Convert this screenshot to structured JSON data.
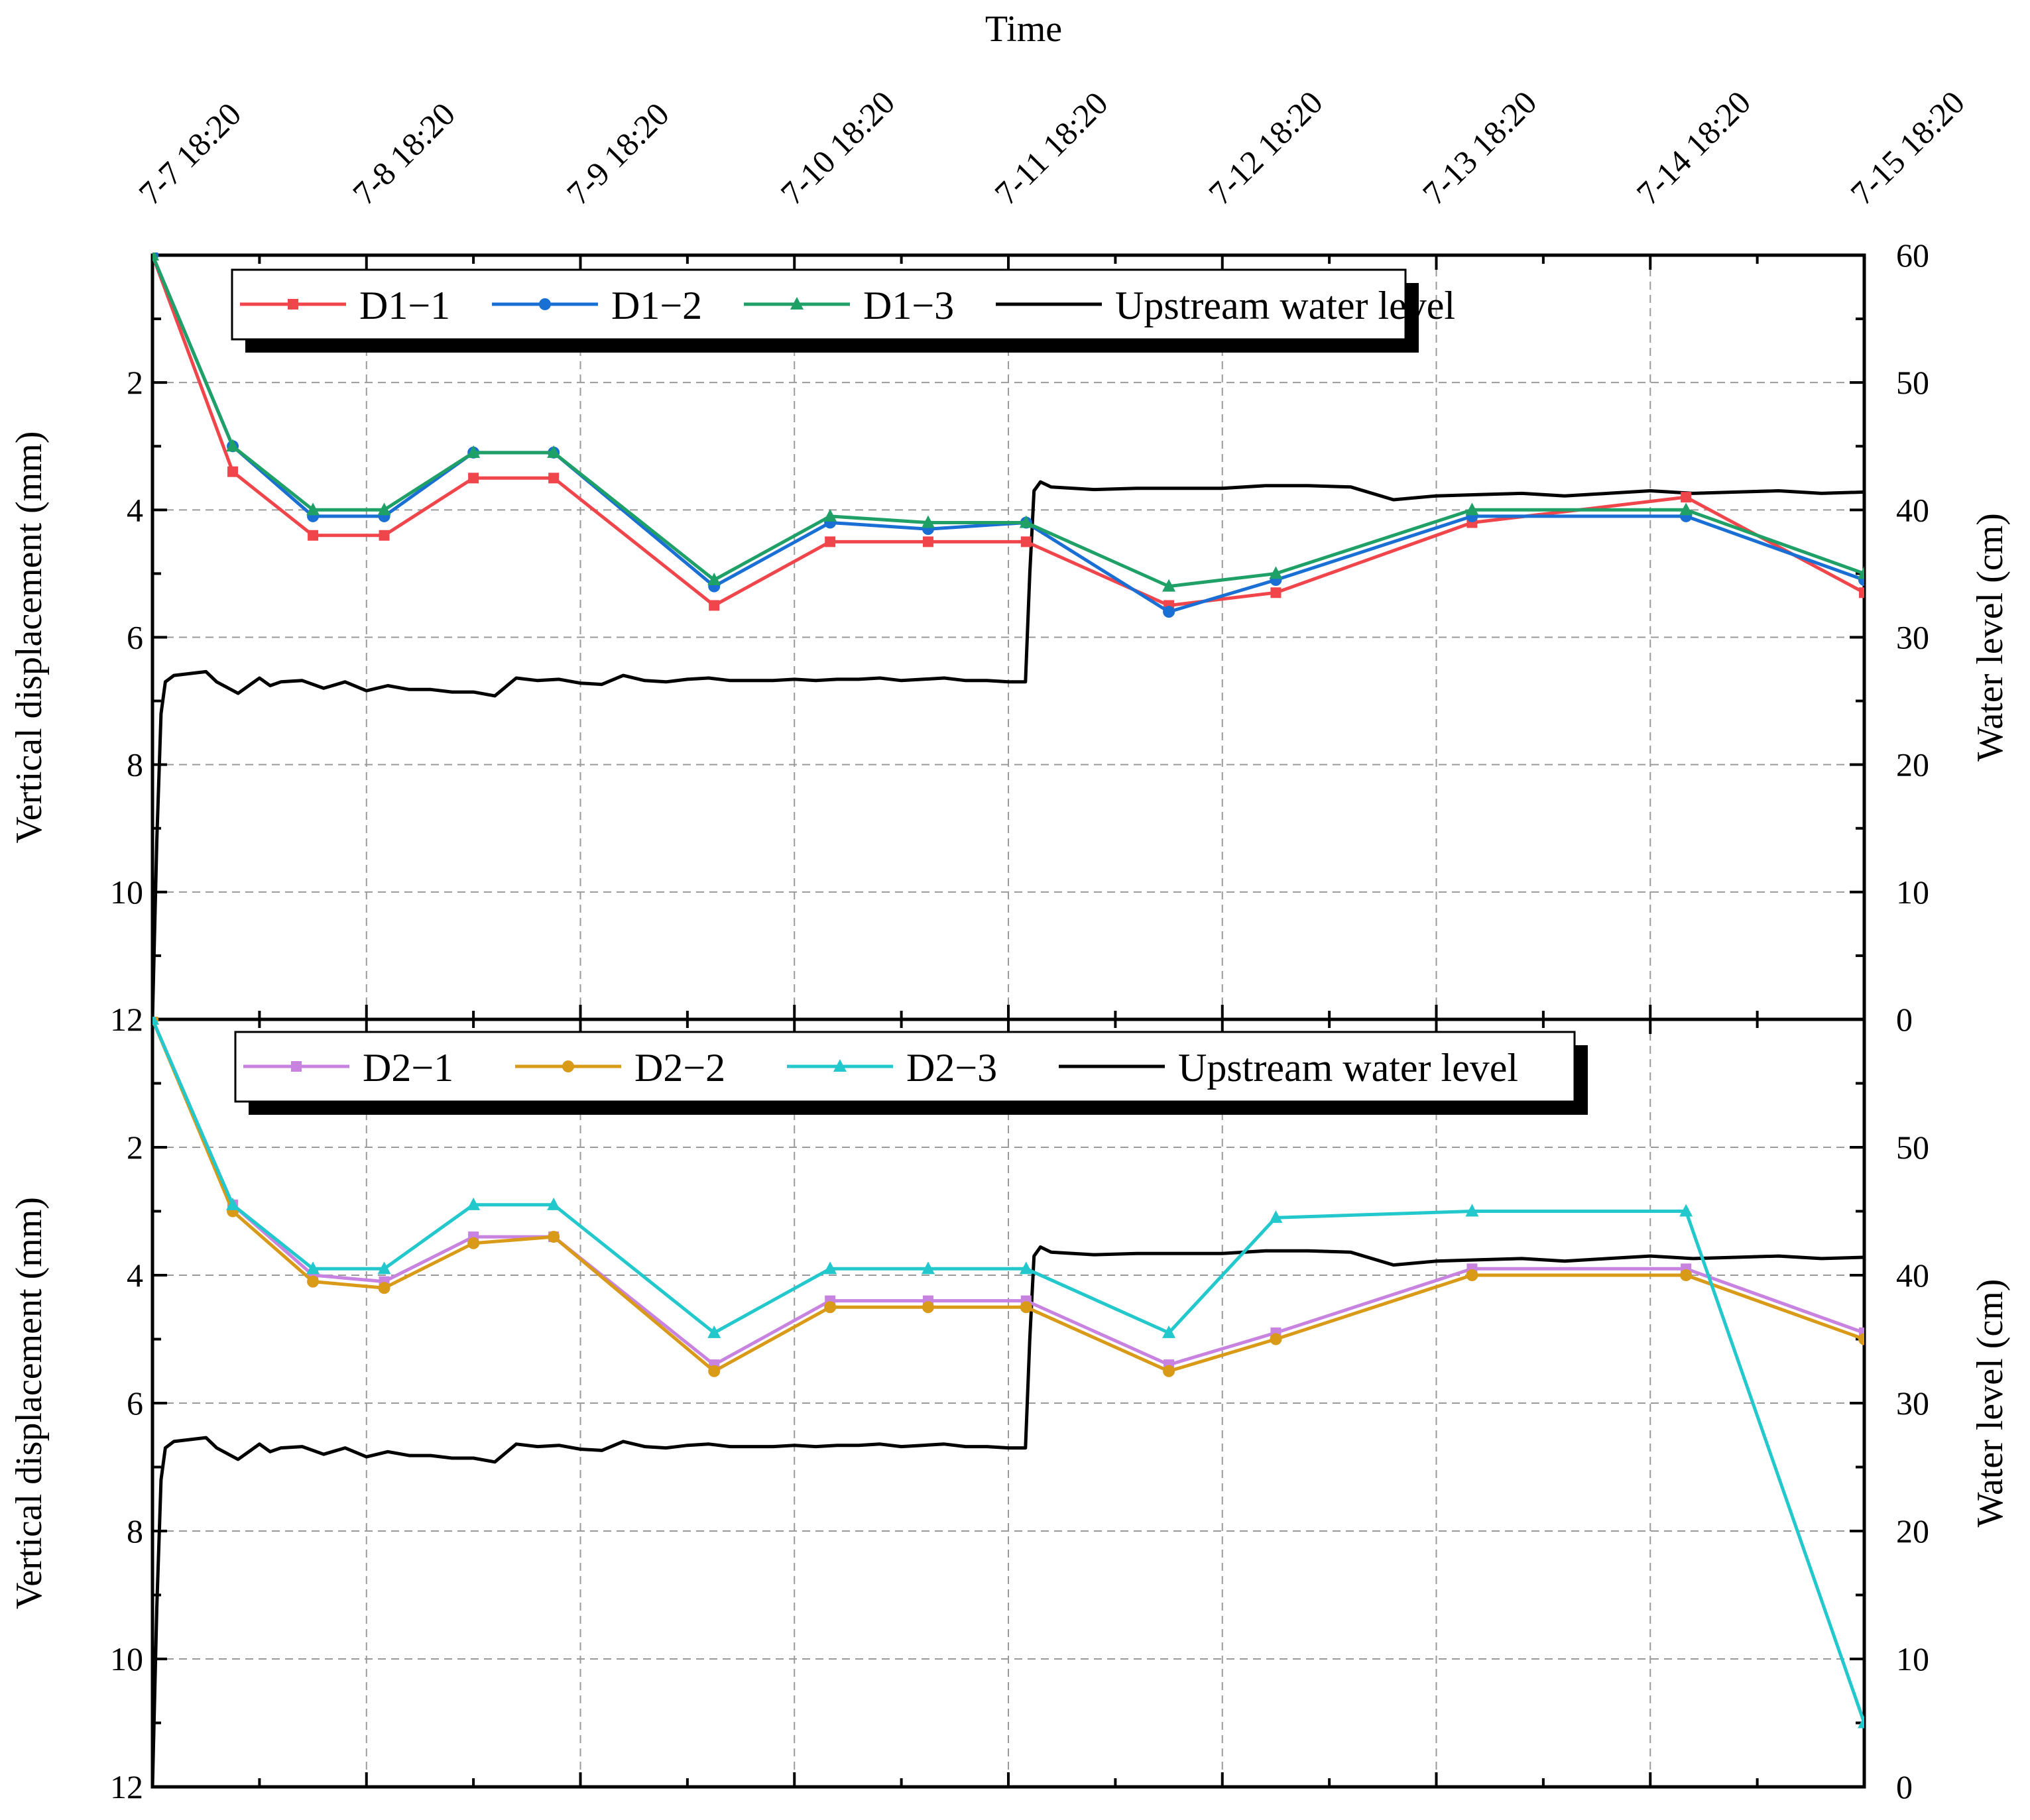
{
  "chart_data": {
    "type": "line",
    "top_axis": {
      "title": "Time",
      "tick_labels": [
        "7-7 18:20",
        "7-8 18:20",
        "7-9 18:20",
        "7-10 18:20",
        "7-11 18:20",
        "7-12 18:20",
        "7-13 18:20",
        "7-14 18:20",
        "7-15 18:20"
      ],
      "range_days": [
        0,
        8
      ]
    },
    "panels": [
      {
        "ylabel": "Vertical displacement (mm)",
        "y2label": "Water level (cm)",
        "ylim": [
          0,
          12
        ],
        "y_inverted": true,
        "y_tick_labels": [
          "2",
          "4",
          "6",
          "8",
          "10",
          "12"
        ],
        "y2lim": [
          0,
          60
        ],
        "y2_tick_labels": [
          "0",
          "10",
          "20",
          "30",
          "40",
          "50",
          "60"
        ],
        "legend": [
          "D1−1",
          "D1−2",
          "D1−3",
          "Upstream water level"
        ],
        "x": [
          0,
          0.375,
          0.75,
          1.083,
          1.5,
          1.875,
          2.625,
          3.167,
          3.625,
          4.083,
          4.75,
          5.25,
          6.167,
          7.167,
          8
        ],
        "series": [
          {
            "name": "D1−1",
            "color": "#f0464b",
            "marker": "square",
            "values": [
              0,
              3.4,
              4.4,
              4.4,
              3.5,
              3.5,
              5.5,
              4.5,
              4.5,
              4.5,
              5.5,
              5.3,
              4.2,
              3.8,
              5.3
            ]
          },
          {
            "name": "D1−2",
            "color": "#1a6fd4",
            "marker": "circle",
            "values": [
              0,
              3.0,
              4.1,
              4.1,
              3.1,
              3.1,
              5.2,
              4.2,
              4.3,
              4.2,
              5.6,
              5.1,
              4.1,
              4.1,
              5.1
            ]
          },
          {
            "name": "D1−3",
            "color": "#1ea067",
            "marker": "triangle",
            "values": [
              0,
              3.0,
              4.0,
              4.0,
              3.1,
              3.1,
              5.1,
              4.1,
              4.2,
              4.2,
              5.2,
              5.0,
              4.0,
              4.0,
              5.0
            ]
          }
        ],
        "water_level": {
          "name": "Upstream water level",
          "color": "#000000",
          "x": [
            0,
            0.02,
            0.04,
            0.06,
            0.1,
            0.25,
            0.3,
            0.4,
            0.5,
            0.55,
            0.6,
            0.7,
            0.8,
            0.9,
            1.0,
            1.1,
            1.2,
            1.3,
            1.4,
            1.5,
            1.6,
            1.7,
            1.8,
            1.9,
            2.0,
            2.1,
            2.2,
            2.3,
            2.4,
            2.5,
            2.6,
            2.7,
            2.8,
            2.9,
            3.0,
            3.1,
            3.2,
            3.3,
            3.4,
            3.5,
            3.6,
            3.7,
            3.8,
            3.9,
            4.0,
            4.08,
            4.1,
            4.12,
            4.15,
            4.2,
            4.4,
            4.6,
            4.8,
            5.0,
            5.2,
            5.4,
            5.6,
            5.8,
            6.0,
            6.2,
            6.4,
            6.6,
            6.8,
            7.0,
            7.2,
            7.4,
            7.6,
            7.8,
            8.0
          ],
          "values": [
            0,
            14,
            24,
            26.5,
            27,
            27.3,
            26.5,
            25.6,
            26.8,
            26.2,
            26.5,
            26.6,
            26.0,
            26.5,
            25.8,
            26.2,
            25.9,
            25.9,
            25.7,
            25.7,
            25.4,
            26.8,
            26.6,
            26.7,
            26.4,
            26.3,
            27.0,
            26.6,
            26.5,
            26.7,
            26.8,
            26.6,
            26.6,
            26.6,
            26.7,
            26.6,
            26.7,
            26.7,
            26.8,
            26.6,
            26.7,
            26.8,
            26.6,
            26.6,
            26.5,
            26.5,
            35,
            41.5,
            42.2,
            41.8,
            41.6,
            41.7,
            41.7,
            41.7,
            41.9,
            41.9,
            41.8,
            40.8,
            41.1,
            41.2,
            41.3,
            41.1,
            41.3,
            41.5,
            41.3,
            41.4,
            41.5,
            41.3,
            41.4
          ]
        }
      },
      {
        "ylabel": "Vertical displacement (mm)",
        "y2label": "Water level (cm)",
        "ylim": [
          0,
          12
        ],
        "y_inverted": true,
        "y_tick_labels": [
          "2",
          "4",
          "6",
          "8",
          "10",
          "12"
        ],
        "y2lim": [
          0,
          60
        ],
        "y2_tick_labels": [
          "0",
          "10",
          "20",
          "30",
          "40",
          "50"
        ],
        "legend": [
          "D2−1",
          "D2−2",
          "D2−3",
          "Upstream water level"
        ],
        "x": [
          0,
          0.375,
          0.75,
          1.083,
          1.5,
          1.875,
          2.625,
          3.167,
          3.625,
          4.083,
          4.75,
          5.25,
          6.167,
          7.167,
          8
        ],
        "series": [
          {
            "name": "D2−1",
            "color": "#c882e0",
            "marker": "square",
            "values": [
              0,
              2.9,
              4.0,
              4.1,
              3.4,
              3.4,
              5.4,
              4.4,
              4.4,
              4.4,
              5.4,
              4.9,
              3.9,
              3.9,
              4.9
            ]
          },
          {
            "name": "D2−2",
            "color": "#d99a18",
            "marker": "circle",
            "values": [
              0,
              3.0,
              4.1,
              4.2,
              3.5,
              3.4,
              5.5,
              4.5,
              4.5,
              4.5,
              5.5,
              5.0,
              4.0,
              4.0,
              5.0
            ]
          },
          {
            "name": "D2−3",
            "color": "#22c8cc",
            "marker": "triangle",
            "values": [
              0,
              2.9,
              3.9,
              3.9,
              2.9,
              2.9,
              4.9,
              3.9,
              3.9,
              3.9,
              4.9,
              3.1,
              3.0,
              3.0,
              11.0
            ]
          }
        ],
        "water_level": {
          "name": "Upstream water level",
          "color": "#000000",
          "x": [
            0,
            0.02,
            0.04,
            0.06,
            0.1,
            0.25,
            0.3,
            0.4,
            0.5,
            0.55,
            0.6,
            0.7,
            0.8,
            0.9,
            1.0,
            1.1,
            1.2,
            1.3,
            1.4,
            1.5,
            1.6,
            1.7,
            1.8,
            1.9,
            2.0,
            2.1,
            2.2,
            2.3,
            2.4,
            2.5,
            2.6,
            2.7,
            2.8,
            2.9,
            3.0,
            3.1,
            3.2,
            3.3,
            3.4,
            3.5,
            3.6,
            3.7,
            3.8,
            3.9,
            4.0,
            4.08,
            4.1,
            4.12,
            4.15,
            4.2,
            4.4,
            4.6,
            4.8,
            5.0,
            5.2,
            5.4,
            5.6,
            5.8,
            6.0,
            6.2,
            6.4,
            6.6,
            6.8,
            7.0,
            7.2,
            7.4,
            7.6,
            7.8,
            8.0
          ],
          "values": [
            0,
            14,
            24,
            26.5,
            27,
            27.3,
            26.5,
            25.6,
            26.8,
            26.2,
            26.5,
            26.6,
            26.0,
            26.5,
            25.8,
            26.2,
            25.9,
            25.9,
            25.7,
            25.7,
            25.4,
            26.8,
            26.6,
            26.7,
            26.4,
            26.3,
            27.0,
            26.6,
            26.5,
            26.7,
            26.8,
            26.6,
            26.6,
            26.6,
            26.7,
            26.6,
            26.7,
            26.7,
            26.8,
            26.6,
            26.7,
            26.8,
            26.6,
            26.6,
            26.5,
            26.5,
            35,
            41.5,
            42.2,
            41.8,
            41.6,
            41.7,
            41.7,
            41.7,
            41.9,
            41.9,
            41.8,
            40.8,
            41.1,
            41.2,
            41.3,
            41.1,
            41.3,
            41.5,
            41.3,
            41.4,
            41.5,
            41.3,
            41.4
          ]
        }
      }
    ]
  }
}
